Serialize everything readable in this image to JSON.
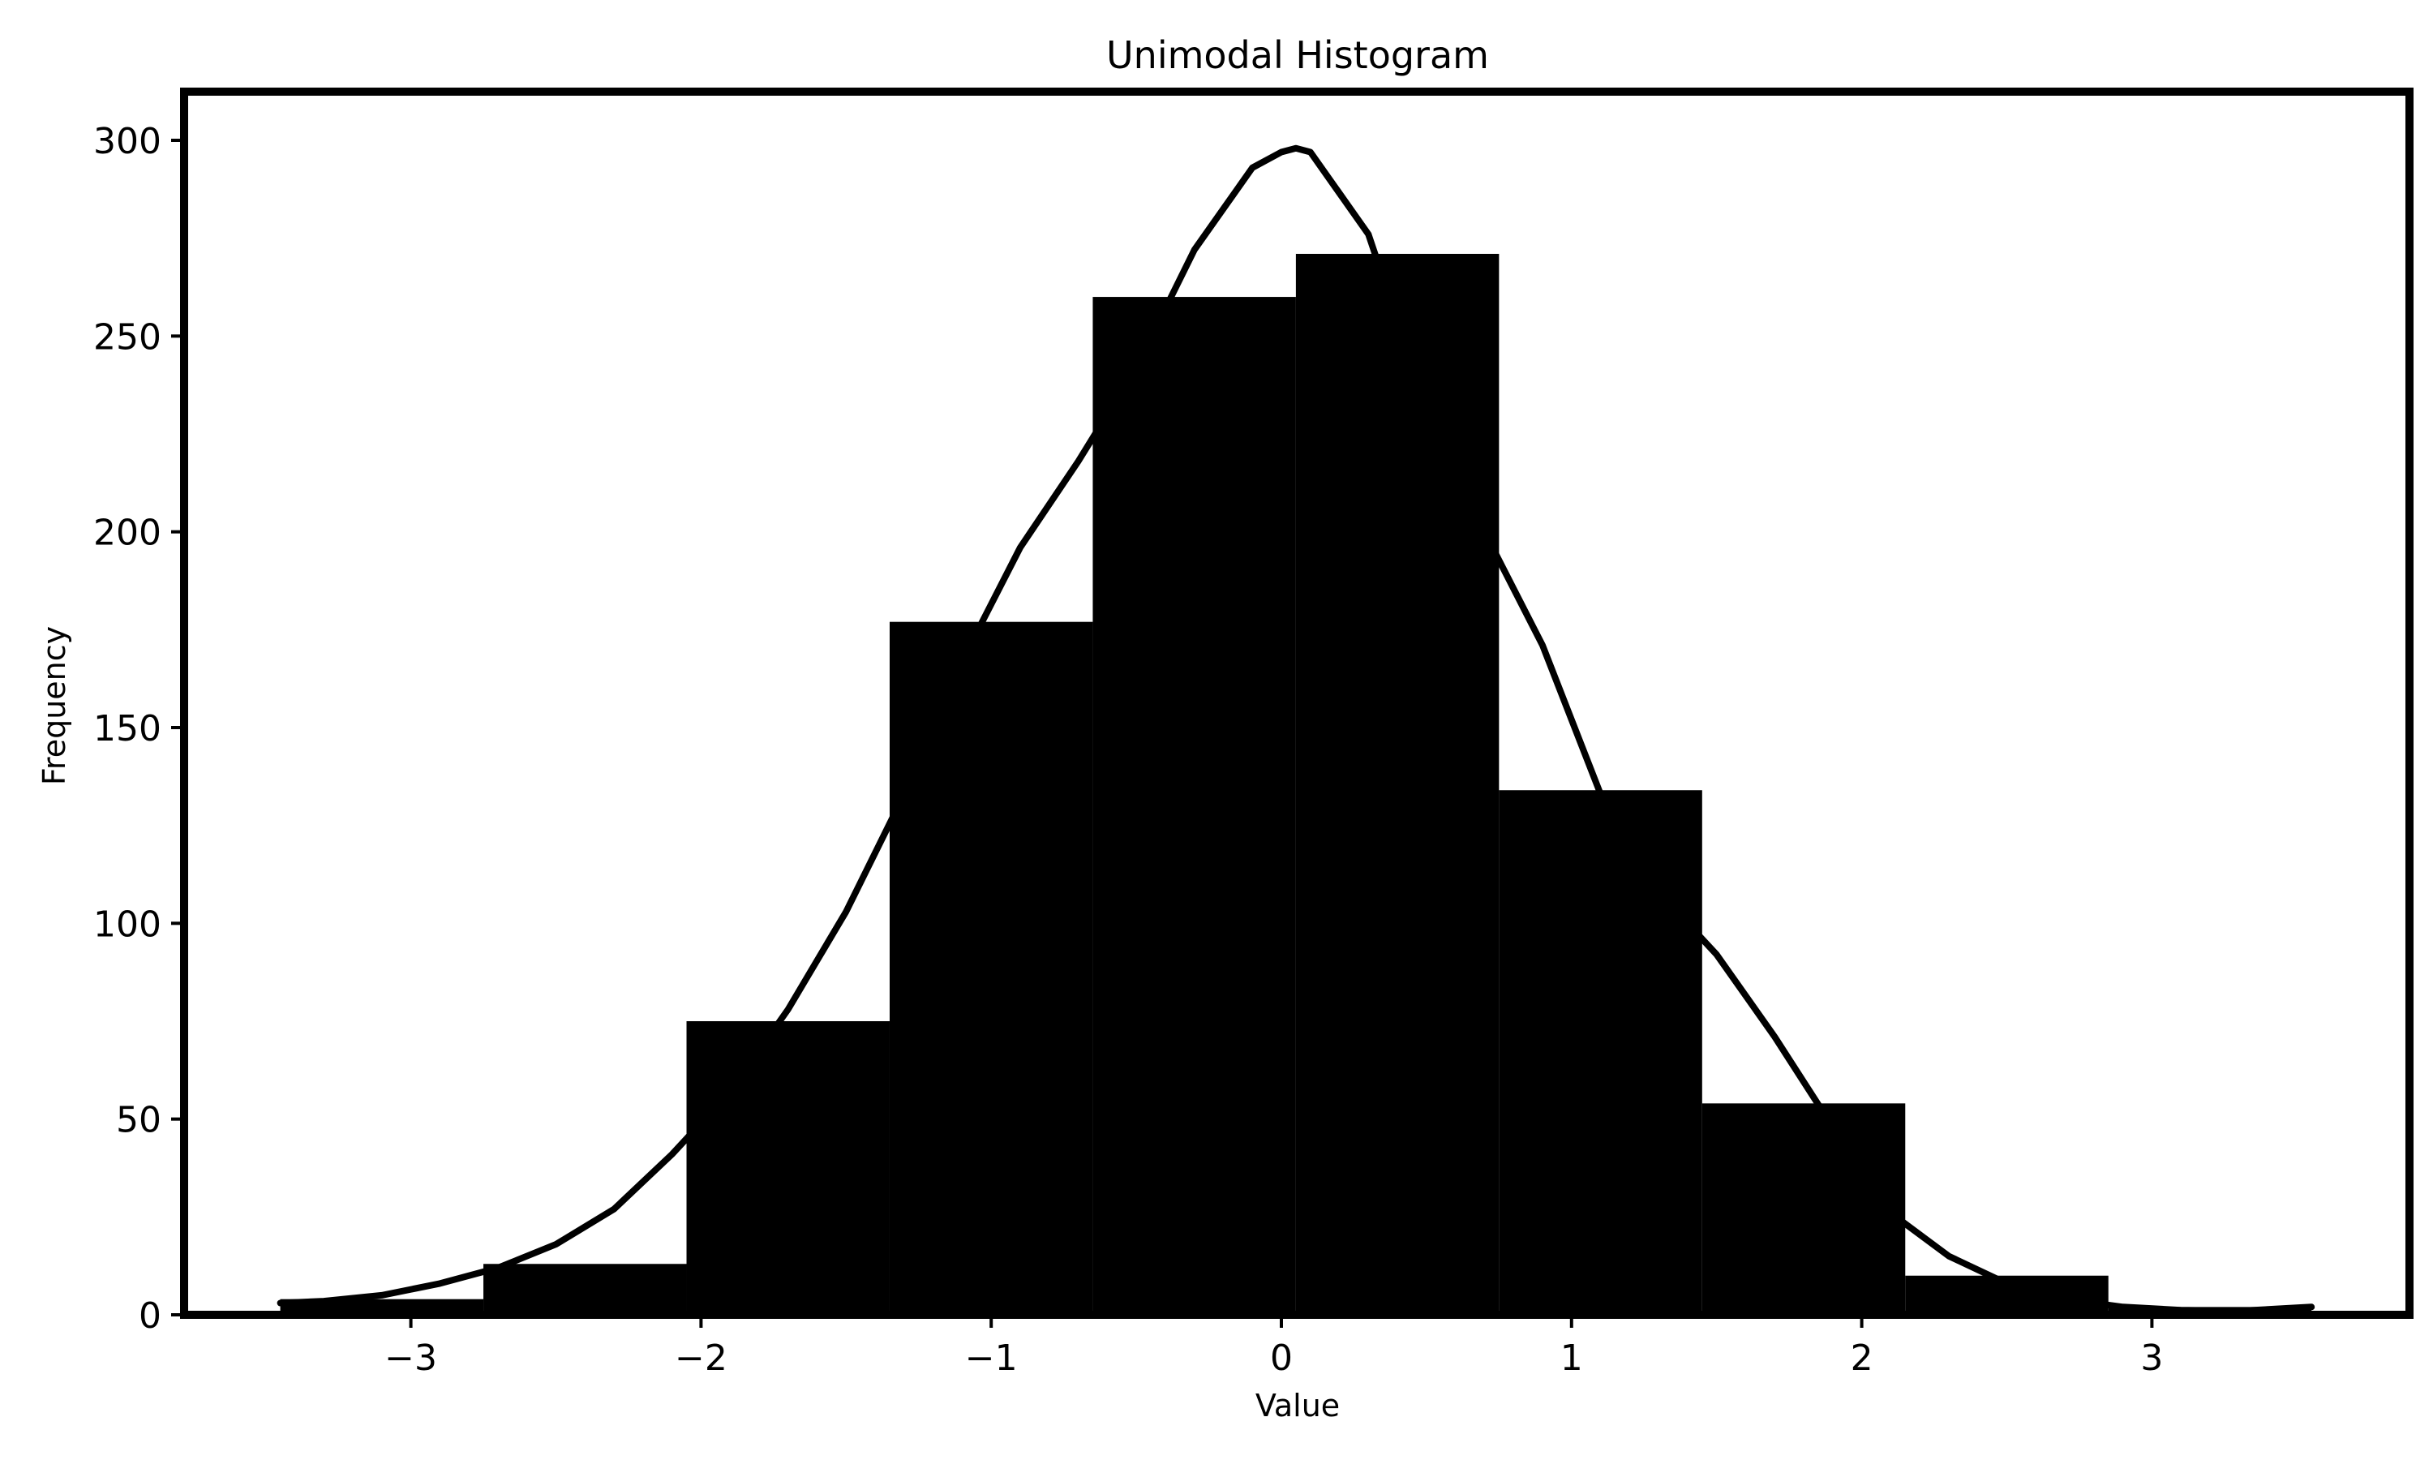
{
  "chart_data": {
    "type": "bar",
    "title": "Unimodal Histogram",
    "xlabel": "Value",
    "ylabel": "Frequency",
    "bins": [
      {
        "x0": -3.45,
        "x1": -2.75,
        "value": 4
      },
      {
        "x0": -2.75,
        "x1": -2.05,
        "value": 13
      },
      {
        "x0": -2.05,
        "x1": -1.35,
        "value": 75
      },
      {
        "x0": -1.35,
        "x1": -0.65,
        "value": 177
      },
      {
        "x0": -0.65,
        "x1": 0.05,
        "value": 260
      },
      {
        "x0": 0.05,
        "x1": 0.75,
        "value": 271
      },
      {
        "x0": 0.75,
        "x1": 1.45,
        "value": 134
      },
      {
        "x0": 1.45,
        "x1": 2.15,
        "value": 54
      },
      {
        "x0": 2.15,
        "x1": 2.85,
        "value": 10
      },
      {
        "x0": 2.85,
        "x1": 3.55,
        "value": 2
      }
    ],
    "density_curve": {
      "x": [
        -3.45,
        -3.3,
        -3.1,
        -2.9,
        -2.7,
        -2.5,
        -2.3,
        -2.1,
        -1.9,
        -1.7,
        -1.5,
        -1.3,
        -1.1,
        -0.9,
        -0.7,
        -0.5,
        -0.3,
        -0.1,
        0.0,
        0.05,
        0.1,
        0.3,
        0.5,
        0.7,
        0.9,
        1.1,
        1.3,
        1.5,
        1.7,
        1.9,
        2.1,
        2.3,
        2.5,
        2.7,
        2.9,
        3.1,
        3.3,
        3.55
      ],
      "y": [
        3,
        3.5,
        5,
        8,
        12,
        18,
        27,
        41,
        57,
        78,
        103,
        133,
        167,
        196,
        218,
        242,
        272,
        293,
        297,
        298,
        297,
        276,
        232,
        200,
        171,
        133,
        108,
        92,
        71,
        48,
        26,
        15,
        8,
        4,
        2,
        1.2,
        1,
        2
      ]
    },
    "xlim": [
      -3.8,
      3.9
    ],
    "ylim": [
      0,
      312
    ],
    "x_ticks": [
      {
        "value": -3,
        "label": "−3"
      },
      {
        "value": -2,
        "label": "−2"
      },
      {
        "value": -1,
        "label": "−1"
      },
      {
        "value": 0,
        "label": "0"
      },
      {
        "value": 1,
        "label": "1"
      },
      {
        "value": 2,
        "label": "2"
      },
      {
        "value": 3,
        "label": "3"
      }
    ],
    "y_ticks": [
      {
        "value": 0,
        "label": "0"
      },
      {
        "value": 50,
        "label": "50"
      },
      {
        "value": 100,
        "label": "100"
      },
      {
        "value": 150,
        "label": "150"
      },
      {
        "value": 200,
        "label": "200"
      },
      {
        "value": 250,
        "label": "250"
      },
      {
        "value": 300,
        "label": "300"
      }
    ],
    "grid": false,
    "legend": "none",
    "bar_color": "#000000",
    "line_color": "#000000",
    "background": "#ffffff"
  }
}
